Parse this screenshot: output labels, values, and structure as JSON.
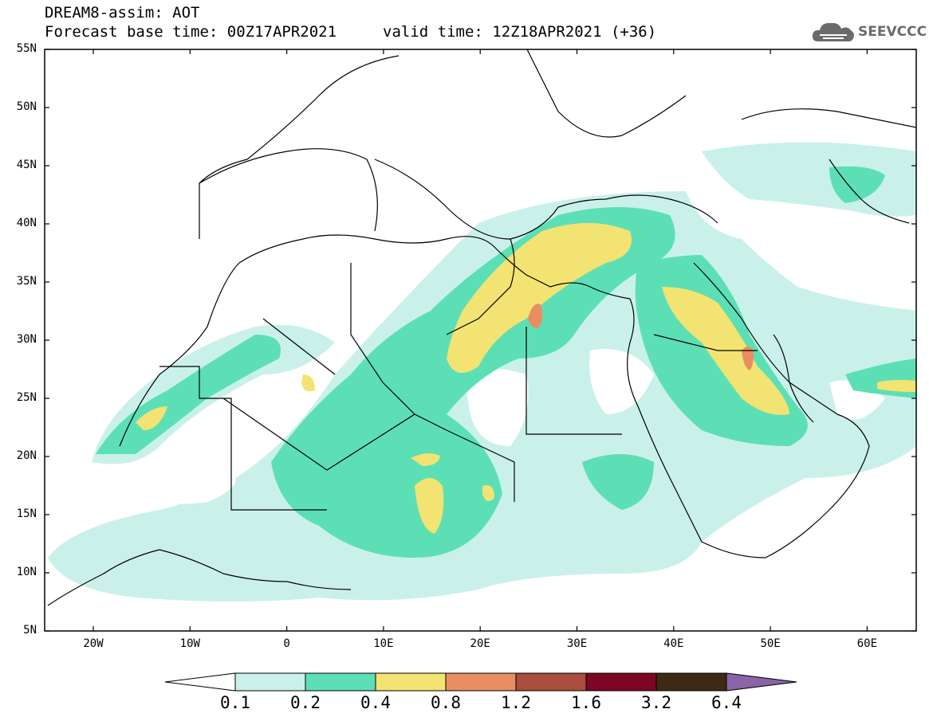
{
  "title": {
    "line1": "DREAM8-assim: AOT",
    "line2": "Forecast base time: 00Z17APR2021",
    "valid": "valid time: 12Z18APR2021 (+36)"
  },
  "logo": {
    "text": "SEEVCCC",
    "icon": "cloud-icon"
  },
  "lat_labels": [
    "55N",
    "50N",
    "45N",
    "40N",
    "35N",
    "30N",
    "25N",
    "20N",
    "15N",
    "10N",
    "5N"
  ],
  "lon_labels": [
    "20W",
    "10W",
    "0",
    "10E",
    "20E",
    "30E",
    "40E",
    "50E",
    "60E"
  ],
  "colorbar": {
    "labels": [
      "0.1",
      "0.2",
      "0.4",
      "0.8",
      "1.2",
      "1.6",
      "3.2",
      "6.4"
    ],
    "colors": [
      "#ffffff",
      "#c9f1ea",
      "#5ddfb6",
      "#f3e373",
      "#e88e62",
      "#a94d3c",
      "#7d0624",
      "#3e2914",
      "#8a64a6"
    ]
  },
  "colors": {
    "coast": "#000000",
    "frame": "#000000"
  }
}
